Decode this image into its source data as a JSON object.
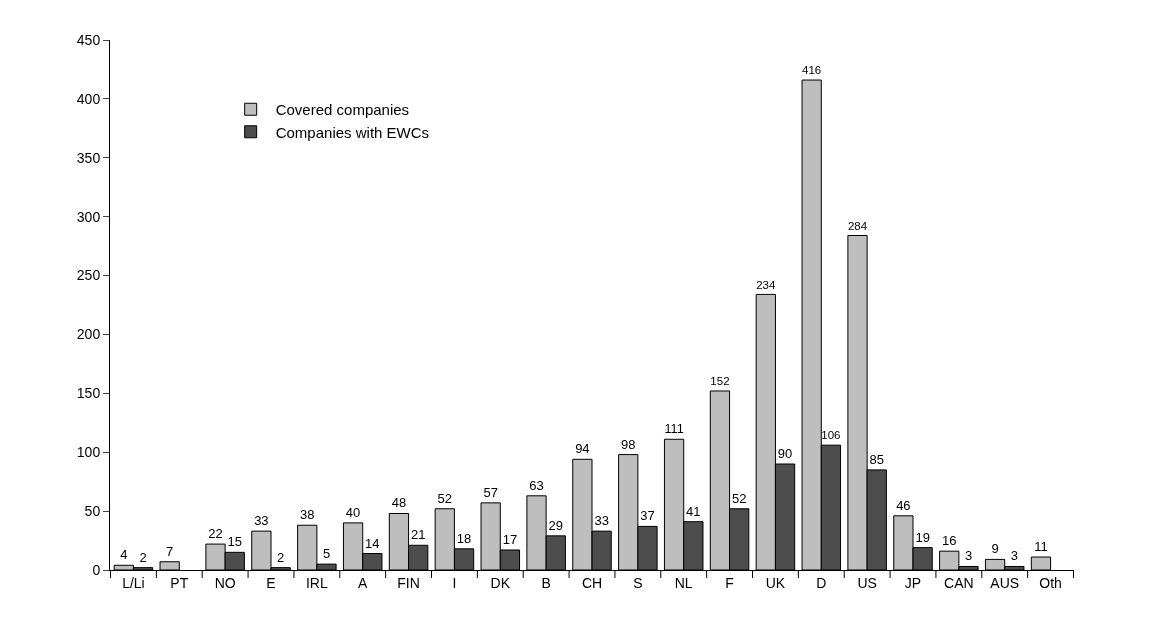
{
  "chart_data": {
    "type": "bar",
    "categories": [
      "L/Li",
      "PT",
      "NO",
      "E",
      "IRL",
      "A",
      "FIN",
      "I",
      "DK",
      "B",
      "CH",
      "S",
      "NL",
      "F",
      "UK",
      "D",
      "US",
      "JP",
      "CAN",
      "AUS",
      "Oth"
    ],
    "series": [
      {
        "name": "Covered companies",
        "color": "#bebebe",
        "values": [
          4,
          7,
          22,
          33,
          38,
          40,
          48,
          52,
          57,
          63,
          94,
          98,
          111,
          152,
          234,
          416,
          284,
          46,
          16,
          9,
          11
        ]
      },
      {
        "name": "Companies with EWCs",
        "color": "#4d4d4d",
        "values": [
          2,
          null,
          15,
          2,
          5,
          14,
          21,
          18,
          17,
          29,
          33,
          37,
          41,
          52,
          90,
          106,
          85,
          19,
          3,
          3,
          null
        ]
      }
    ],
    "ylim": [
      0,
      450
    ],
    "yticks": [
      0,
      50,
      100,
      150,
      200,
      250,
      300,
      350,
      400,
      450
    ],
    "legend": "top left",
    "data_labels": true
  }
}
